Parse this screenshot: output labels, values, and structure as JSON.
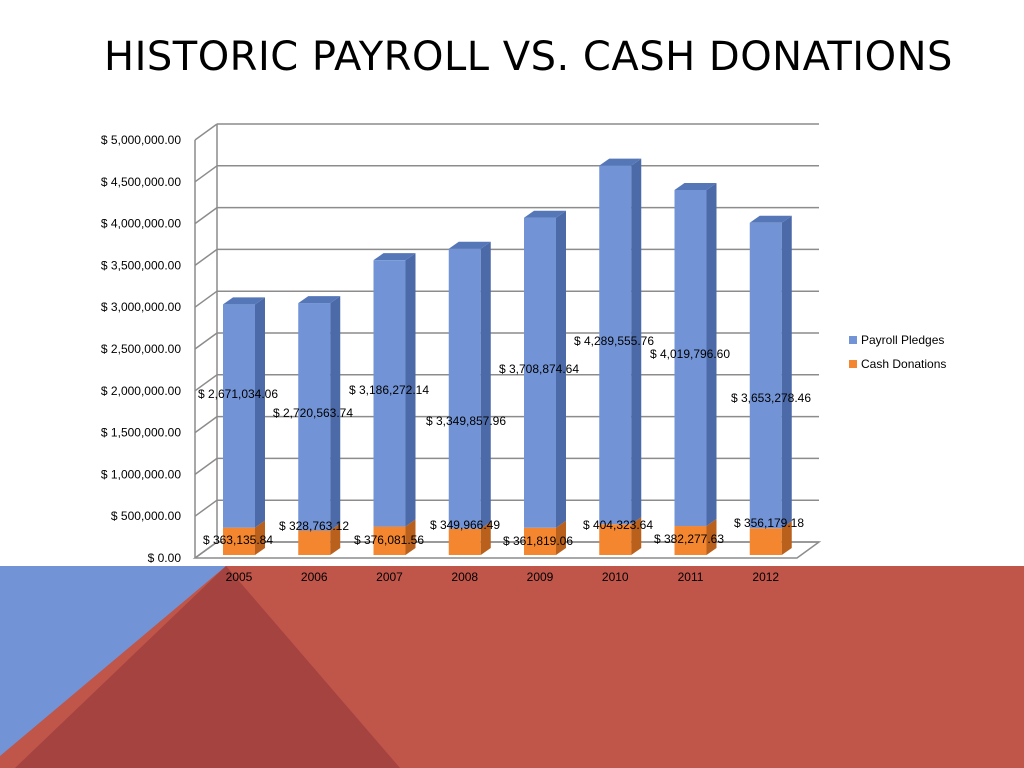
{
  "title": "HISTORIC PAYROLL VS. CASH DONATIONS",
  "theme": {
    "accent_red": "#C0554A",
    "dark_red": "#A4433F",
    "accent_blue": "#7294D6"
  },
  "chart_data": {
    "type": "bar",
    "stacked": true,
    "style": "3d-column",
    "categories": [
      "2005",
      "2006",
      "2007",
      "2008",
      "2009",
      "2010",
      "2011",
      "2012"
    ],
    "series": [
      {
        "name": "Cash Donations",
        "color": "#F4862F",
        "values": [
          363135.84,
          328763.12,
          376081.56,
          349966.49,
          361819.06,
          404323.64,
          382277.63,
          356179.18
        ],
        "labels": [
          "363,135.84",
          "328,763.12",
          "376,081.56",
          "349,966.49",
          "361,819.06",
          "404,323.64",
          "382,277.63",
          "356,179.18"
        ]
      },
      {
        "name": "Payroll Pledges",
        "color": "#7294D6",
        "values": [
          2671034.06,
          2720563.74,
          3186272.14,
          3349857.96,
          3708874.64,
          4289555.76,
          4019796.6,
          3653278.46
        ],
        "labels": [
          "2,671,034.06",
          "2,720,563.74",
          "3,186,272.14",
          "3,349,857.96",
          "3,708,874.64",
          "4,289,555.76",
          "4,019,796.60",
          "3,653,278.46"
        ]
      }
    ],
    "currency_symbol": "$",
    "ylim": [
      0,
      5000000
    ],
    "ytick_labels": [
      "$ 0.00",
      "$ 500,000.00",
      "$ 1,000,000.00",
      "$ 1,500,000.00",
      "$ 2,000,000.00",
      "$ 2,500,000.00",
      "$ 3,000,000.00",
      "$ 3,500,000.00",
      "$ 4,000,000.00",
      "$ 4,500,000.00",
      "$ 5,000,000.00"
    ],
    "grid": true,
    "legend": {
      "position": "right",
      "entries": [
        "Payroll Pledges",
        "Cash Donations"
      ]
    }
  }
}
